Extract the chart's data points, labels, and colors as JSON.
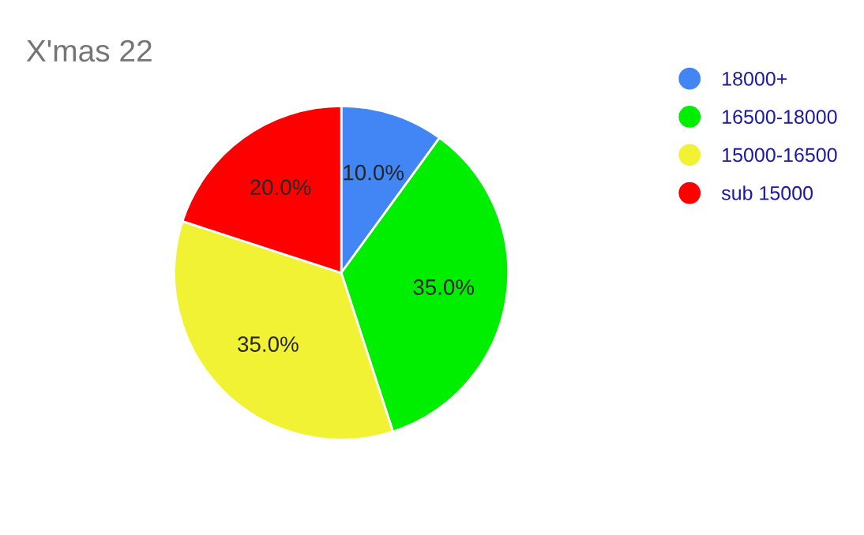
{
  "chart_data": {
    "type": "pie",
    "title": "X'mas 22",
    "categories": [
      "18000+",
      "16500-18000",
      "15000-16500",
      "sub 15000"
    ],
    "values": [
      10.0,
      35.0,
      35.0,
      20.0
    ],
    "value_labels": [
      "10.0%",
      "35.0%",
      "35.0%",
      "20.0%"
    ],
    "colors": [
      "#4285f4",
      "#00ee00",
      "#f2f235",
      "#ff0000"
    ],
    "legend": "top right"
  }
}
